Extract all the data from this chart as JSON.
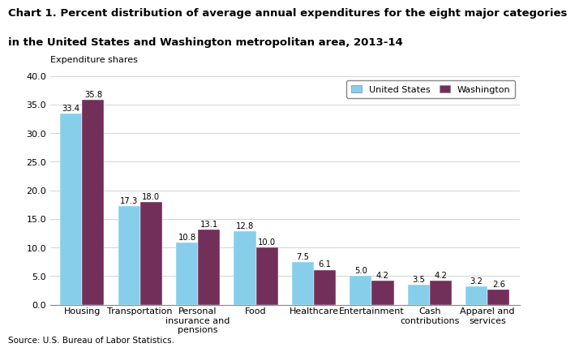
{
  "title_line1": "Chart 1. Percent distribution of average annual expenditures for the eight major categories",
  "title_line2": "in the United States and Washington metropolitan area, 2013-14",
  "ylabel": "Expenditure shares",
  "categories": [
    "Housing",
    "Transportation",
    "Personal\ninsurance and\npensions",
    "Food",
    "Healthcare",
    "Entertainment",
    "Cash\ncontributions",
    "Apparel and\nservices"
  ],
  "us_values": [
    33.4,
    17.3,
    10.8,
    12.8,
    7.5,
    5.0,
    3.5,
    3.2
  ],
  "wash_values": [
    35.8,
    18.0,
    13.1,
    10.0,
    6.1,
    4.2,
    4.2,
    2.6
  ],
  "us_color": "#87CEEB",
  "wash_color": "#722F5A",
  "ylim": [
    0,
    40.0
  ],
  "yticks": [
    0.0,
    5.0,
    10.0,
    15.0,
    20.0,
    25.0,
    30.0,
    35.0,
    40.0
  ],
  "legend_us": "United States",
  "legend_wash": "Washington",
  "source": "Source: U.S. Bureau of Labor Statistics.",
  "bar_width": 0.38,
  "title_fontsize": 9.5,
  "label_fontsize": 8,
  "tick_fontsize": 8,
  "value_fontsize": 7.2
}
